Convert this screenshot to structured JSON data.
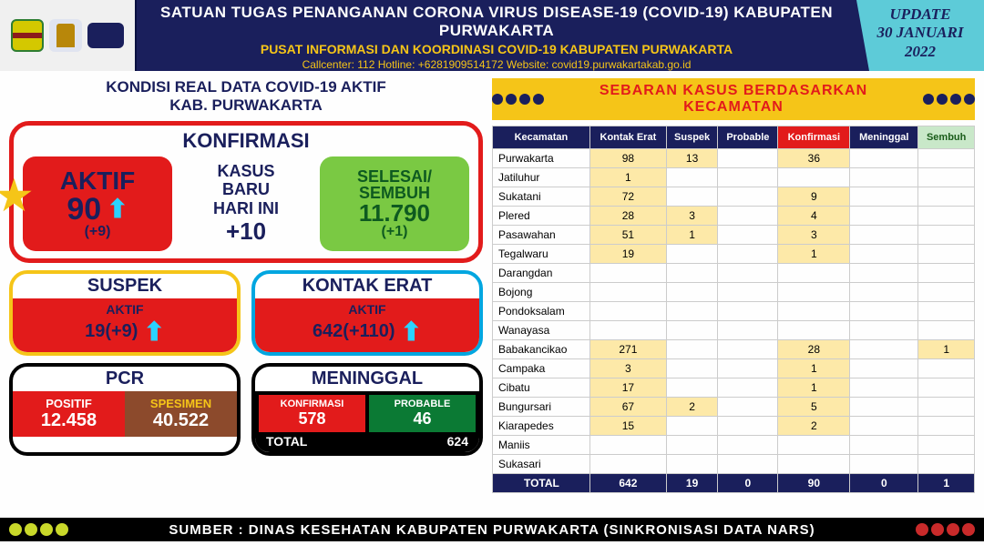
{
  "header": {
    "title": "SATUAN TUGAS PENANGANAN CORONA VIRUS DISEASE-19 (COVID-19) KABUPATEN PURWAKARTA",
    "subtitle": "PUSAT INFORMASI DAN KOORDINASI COVID-19 KABUPATEN PURWAKARTA",
    "contact": "Callcenter: 112   Hotline: +6281909514172   Website: covid19.purwakartakab.go.id",
    "update_label": "UPDATE",
    "update_date": "30 JANUARI",
    "update_year": "2022"
  },
  "left": {
    "title_l1": "KONDISI REAL DATA COVID-19 AKTIF",
    "title_l2": "KAB. PURWAKARTA",
    "konfirmasi_title": "KONFIRMASI",
    "aktif": {
      "label": "AKTIF",
      "value": "90",
      "delta": "(+9)"
    },
    "baru": {
      "l1": "KASUS",
      "l2": "BARU",
      "l3": "HARI INI",
      "value": "+10"
    },
    "sembuh": {
      "l1": "SELESAI/",
      "l2": "SEMBUH",
      "value": "11.790",
      "delta": "(+1)"
    },
    "suspek": {
      "title": "SUSPEK",
      "label": "AKTIF",
      "value": "19(+9)"
    },
    "kontak": {
      "title": "KONTAK ERAT",
      "label": "AKTIF",
      "value": "642(+110)"
    },
    "pcr": {
      "title": "PCR",
      "pos_label": "POSITIF",
      "pos_value": "12.458",
      "spec_label": "SPESIMEN",
      "spec_value": "40.522"
    },
    "meninggal": {
      "title": "MENINGGAL",
      "k_label": "KONFIRMASI",
      "k_value": "578",
      "p_label": "PROBABLE",
      "p_value": "46",
      "total_label": "TOTAL",
      "total_value": "624"
    }
  },
  "right": {
    "title": "SEBARAN KASUS BERDASARKAN KECAMATAN",
    "columns": [
      "Kecamatan",
      "Kontak Erat",
      "Suspek",
      "Probable",
      "Konfirmasi",
      "Meninggal",
      "Sembuh"
    ],
    "rows": [
      {
        "name": "Purwakarta",
        "ke": "98",
        "s": "13",
        "p": "",
        "k": "36",
        "m": "",
        "sm": ""
      },
      {
        "name": "Jatiluhur",
        "ke": "1",
        "s": "",
        "p": "",
        "k": "",
        "m": "",
        "sm": ""
      },
      {
        "name": "Sukatani",
        "ke": "72",
        "s": "",
        "p": "",
        "k": "9",
        "m": "",
        "sm": ""
      },
      {
        "name": "Plered",
        "ke": "28",
        "s": "3",
        "p": "",
        "k": "4",
        "m": "",
        "sm": ""
      },
      {
        "name": "Pasawahan",
        "ke": "51",
        "s": "1",
        "p": "",
        "k": "3",
        "m": "",
        "sm": ""
      },
      {
        "name": "Tegalwaru",
        "ke": "19",
        "s": "",
        "p": "",
        "k": "1",
        "m": "",
        "sm": ""
      },
      {
        "name": "Darangdan",
        "ke": "",
        "s": "",
        "p": "",
        "k": "",
        "m": "",
        "sm": ""
      },
      {
        "name": "Bojong",
        "ke": "",
        "s": "",
        "p": "",
        "k": "",
        "m": "",
        "sm": ""
      },
      {
        "name": "Pondoksalam",
        "ke": "",
        "s": "",
        "p": "",
        "k": "",
        "m": "",
        "sm": ""
      },
      {
        "name": "Wanayasa",
        "ke": "",
        "s": "",
        "p": "",
        "k": "",
        "m": "",
        "sm": ""
      },
      {
        "name": "Babakancikao",
        "ke": "271",
        "s": "",
        "p": "",
        "k": "28",
        "m": "",
        "sm": "1"
      },
      {
        "name": "Campaka",
        "ke": "3",
        "s": "",
        "p": "",
        "k": "1",
        "m": "",
        "sm": ""
      },
      {
        "name": "Cibatu",
        "ke": "17",
        "s": "",
        "p": "",
        "k": "1",
        "m": "",
        "sm": ""
      },
      {
        "name": "Bungursari",
        "ke": "67",
        "s": "2",
        "p": "",
        "k": "5",
        "m": "",
        "sm": ""
      },
      {
        "name": "Kiarapedes",
        "ke": "15",
        "s": "",
        "p": "",
        "k": "2",
        "m": "",
        "sm": ""
      },
      {
        "name": "Maniis",
        "ke": "",
        "s": "",
        "p": "",
        "k": "",
        "m": "",
        "sm": ""
      },
      {
        "name": "Sukasari",
        "ke": "",
        "s": "",
        "p": "",
        "k": "",
        "m": "",
        "sm": ""
      }
    ],
    "total": {
      "name": "TOTAL",
      "ke": "642",
      "s": "19",
      "p": "0",
      "k": "90",
      "m": "0",
      "sm": "1"
    }
  },
  "footer": "SUMBER : DINAS KESEHATAN KABUPATEN PURWAKARTA (SINKRONISASI DATA NARS)",
  "colors": {
    "navy": "#1a1f5c",
    "red": "#e21b1b",
    "yellow": "#f5c518",
    "green": "#7ac943",
    "cyan": "#5dcbd8",
    "brown": "#8c4a2c",
    "highlight": "#fde9a8"
  }
}
